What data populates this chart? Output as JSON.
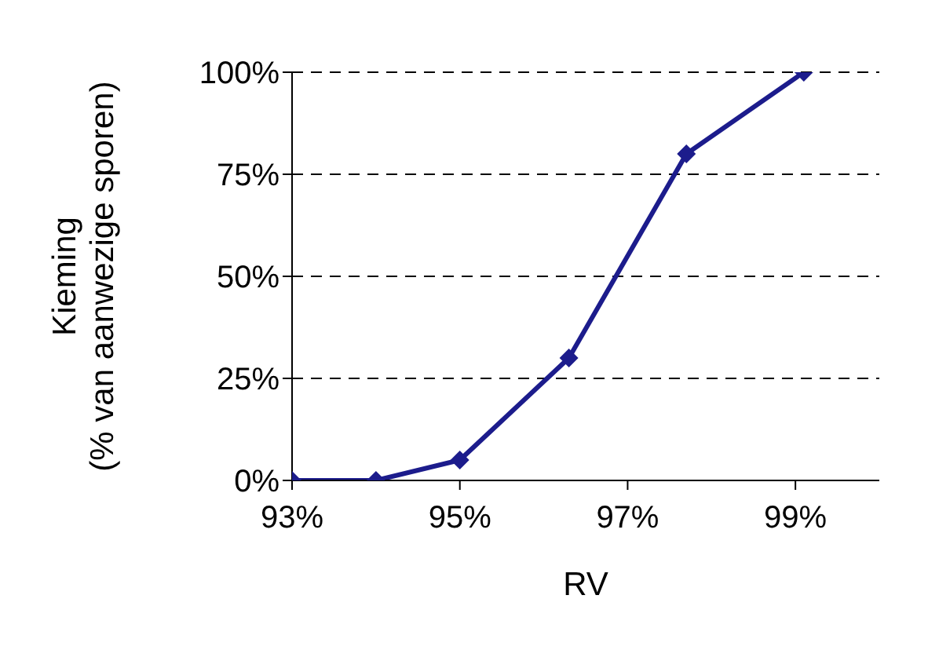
{
  "chart_data": {
    "type": "line",
    "xlabel": "RV",
    "ylabel": "Kieming\n(% van aanwezige sporen)",
    "x": [
      93,
      94,
      95,
      96.3,
      97.7,
      99.1
    ],
    "series": [
      {
        "color": "#1c1c8c",
        "values": [
          0,
          0,
          5,
          30,
          80,
          100
        ]
      }
    ],
    "xlim": [
      93,
      100
    ],
    "xticks": [
      {
        "value": 93,
        "label": "93%"
      },
      {
        "value": 95,
        "label": "95%"
      },
      {
        "value": 97,
        "label": "97%"
      },
      {
        "value": 99,
        "label": "99%"
      }
    ],
    "ylim": [
      0,
      100
    ],
    "yticks": [
      {
        "value": 0,
        "label": "0%"
      },
      {
        "value": 25,
        "label": "25%"
      },
      {
        "value": 50,
        "label": "50%"
      },
      {
        "value": 75,
        "label": "75%"
      },
      {
        "value": 100,
        "label": "100%"
      }
    ],
    "grid": "y",
    "legend": false,
    "marker": "diamond",
    "line_style": "solid"
  }
}
